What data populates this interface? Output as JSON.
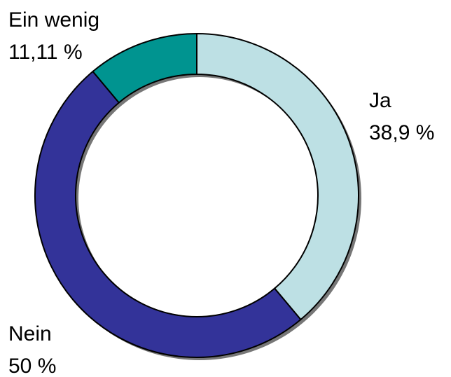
{
  "chart_data": {
    "type": "donut",
    "categories": [
      "Ja",
      "Nein",
      "Ein wenig"
    ],
    "values": [
      38.9,
      50,
      11.11
    ],
    "value_labels": [
      "38,9 %",
      "50 %",
      "11,11 %"
    ],
    "colors": [
      "#bde0e4",
      "#333399",
      "#009490"
    ]
  }
}
